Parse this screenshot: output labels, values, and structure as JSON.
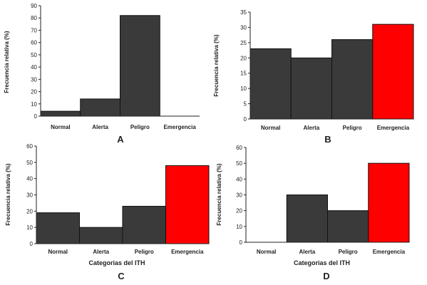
{
  "chart_data": [
    {
      "panel": "A",
      "type": "bar",
      "categories": [
        "Normal",
        "Alerta",
        "Peligro",
        "Emergencia"
      ],
      "values": [
        4,
        14,
        82,
        0
      ],
      "colors": [
        "#3a3a3a",
        "#3a3a3a",
        "#3a3a3a",
        "#ff0000"
      ],
      "ylabel": "Frecuencia relativa (%)",
      "xlabel": "",
      "ylim": [
        0,
        90
      ],
      "yticks": [
        0,
        10,
        20,
        30,
        40,
        50,
        60,
        70,
        80,
        90
      ]
    },
    {
      "panel": "B",
      "type": "bar",
      "categories": [
        "Normal",
        "Alerta",
        "Peligro",
        "Emergencia"
      ],
      "values": [
        23,
        20,
        26,
        31
      ],
      "colors": [
        "#3a3a3a",
        "#3a3a3a",
        "#3a3a3a",
        "#ff0000"
      ],
      "ylabel": "Frecuencia relativa (%)",
      "xlabel": "",
      "ylim": [
        0,
        35
      ],
      "yticks": [
        0,
        5,
        10,
        15,
        20,
        25,
        30,
        35
      ]
    },
    {
      "panel": "C",
      "type": "bar",
      "categories": [
        "Normal",
        "Alerta",
        "Peligro",
        "Emergencia"
      ],
      "values": [
        19,
        10,
        23,
        48
      ],
      "colors": [
        "#3a3a3a",
        "#3a3a3a",
        "#3a3a3a",
        "#ff0000"
      ],
      "ylabel": "Frecuencia relativa (%)",
      "xlabel": "Categorias del ITH",
      "ylim": [
        0,
        60
      ],
      "yticks": [
        0,
        10,
        20,
        30,
        40,
        50,
        60
      ]
    },
    {
      "panel": "D",
      "type": "bar",
      "categories": [
        "Normal",
        "Alerta",
        "Peligro",
        "Emergencia"
      ],
      "values": [
        0,
        30,
        20,
        50
      ],
      "colors": [
        "#3a3a3a",
        "#3a3a3a",
        "#3a3a3a",
        "#ff0000"
      ],
      "ylabel": "Frecuencia relativa (%)",
      "xlabel": "Categorias del ITH",
      "ylim": [
        0,
        60
      ],
      "yticks": [
        0,
        10,
        20,
        30,
        40,
        50,
        60
      ]
    }
  ]
}
